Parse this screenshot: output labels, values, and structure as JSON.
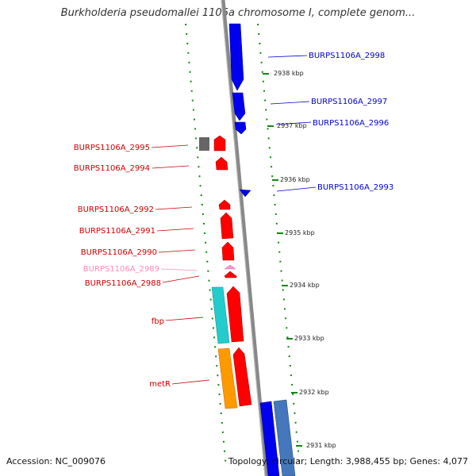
{
  "title": "Burkholderia pseudomallei 1106a chromosome I, complete genom...",
  "footer": {
    "accession": "Accession: NC_009076",
    "topology": "Topology: circular; Length: 3,988,455 bp; Genes: 4,077"
  },
  "colors": {
    "forward_gene": "#ff0000",
    "reverse_gene": "#0000ee",
    "pseudo_gene": "#ff99cc",
    "rna_teal": "#22cccc",
    "rna_orange": "#ff9900",
    "grey_feature": "#666666",
    "tick_green": "#118811",
    "backbone": "#888888"
  },
  "gene_labels": [
    {
      "text": "BURPS1106A_2998",
      "color": "#0000cc",
      "side": "right"
    },
    {
      "text": "BURPS1106A_2997",
      "color": "#0000cc",
      "side": "right"
    },
    {
      "text": "BURPS1106A_2996",
      "color": "#0000cc",
      "side": "right"
    },
    {
      "text": "BURPS1106A_2995",
      "color": "#cc0000",
      "side": "left"
    },
    {
      "text": "BURPS1106A_2994",
      "color": "#cc0000",
      "side": "left"
    },
    {
      "text": "BURPS1106A_2993",
      "color": "#0000cc",
      "side": "right"
    },
    {
      "text": "BURPS1106A_2992",
      "color": "#cc0000",
      "side": "left"
    },
    {
      "text": "BURPS1106A_2991",
      "color": "#cc0000",
      "side": "left"
    },
    {
      "text": "BURPS1106A_2990",
      "color": "#cc0000",
      "side": "left"
    },
    {
      "text": "BURPS1106A_2989",
      "color": "#ff88bb",
      "side": "left"
    },
    {
      "text": "BURPS1106A_2988",
      "color": "#cc0000",
      "side": "left"
    },
    {
      "text": "fbp",
      "color": "#cc0000",
      "side": "left"
    },
    {
      "text": "metR",
      "color": "#cc0000",
      "side": "left"
    }
  ],
  "kbp_labels": [
    "2938 kbp",
    "2937 kbp",
    "2936 kbp",
    "2935 kbp",
    "2934 kbp",
    "2933 kbp",
    "2932 kbp",
    "2931 kbp"
  ]
}
